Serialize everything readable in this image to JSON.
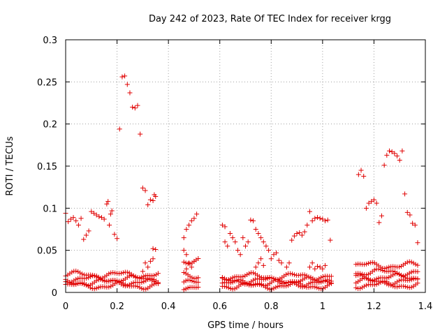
{
  "chart_data": {
    "type": "scatter",
    "title": "Day 242 of 2023, Rate Of TEC Index for receiver krgg",
    "xlabel": "GPS time / hours",
    "ylabel": "ROTI / TECUs",
    "xlim": [
      0,
      1.4
    ],
    "ylim": [
      0,
      0.3
    ],
    "xticks": [
      "0",
      "0.2",
      "0.4",
      "0.6",
      "0.8",
      "1",
      "1.2",
      "1.4"
    ],
    "yticks": [
      "0",
      "0.05",
      "0.1",
      "0.15",
      "0.2",
      "0.25",
      "0.3"
    ],
    "grid": true,
    "marker": "+",
    "color": "#e00000",
    "series": [
      {
        "points": [
          [
            0.0,
            0.094
          ],
          [
            0.01,
            0.084
          ],
          [
            0.02,
            0.087
          ],
          [
            0.03,
            0.089
          ],
          [
            0.04,
            0.085
          ],
          [
            0.05,
            0.08
          ],
          [
            0.06,
            0.088
          ],
          [
            0.07,
            0.063
          ],
          [
            0.08,
            0.068
          ],
          [
            0.09,
            0.073
          ],
          [
            0.1,
            0.096
          ],
          [
            0.11,
            0.094
          ],
          [
            0.12,
            0.092
          ],
          [
            0.13,
            0.09
          ],
          [
            0.14,
            0.089
          ],
          [
            0.15,
            0.087
          ],
          [
            0.16,
            0.105
          ],
          [
            0.165,
            0.108
          ],
          [
            0.17,
            0.08
          ],
          [
            0.175,
            0.093
          ],
          [
            0.18,
            0.097
          ],
          [
            0.19,
            0.069
          ],
          [
            0.2,
            0.064
          ],
          [
            0.21,
            0.194
          ],
          [
            0.22,
            0.256
          ],
          [
            0.23,
            0.257
          ],
          [
            0.24,
            0.247
          ],
          [
            0.25,
            0.237
          ],
          [
            0.26,
            0.22
          ],
          [
            0.27,
            0.219
          ],
          [
            0.28,
            0.222
          ],
          [
            0.29,
            0.188
          ],
          [
            0.3,
            0.124
          ],
          [
            0.31,
            0.121
          ],
          [
            0.32,
            0.104
          ],
          [
            0.33,
            0.11
          ],
          [
            0.34,
            0.109
          ],
          [
            0.345,
            0.116
          ],
          [
            0.35,
            0.114
          ],
          [
            0.34,
            0.052
          ],
          [
            0.35,
            0.051
          ],
          [
            0.3,
            0.025
          ],
          [
            0.31,
            0.035
          ],
          [
            0.32,
            0.03
          ],
          [
            0.33,
            0.037
          ],
          [
            0.34,
            0.04
          ],
          [
            0.46,
            0.065
          ],
          [
            0.47,
            0.075
          ],
          [
            0.48,
            0.08
          ],
          [
            0.49,
            0.085
          ],
          [
            0.5,
            0.088
          ],
          [
            0.51,
            0.093
          ],
          [
            0.46,
            0.05
          ],
          [
            0.47,
            0.045
          ],
          [
            0.48,
            0.035
          ],
          [
            0.49,
            0.03
          ],
          [
            0.5,
            0.037
          ],
          [
            0.47,
            0.028
          ],
          [
            0.61,
            0.08
          ],
          [
            0.62,
            0.078
          ],
          [
            0.62,
            0.06
          ],
          [
            0.63,
            0.055
          ],
          [
            0.64,
            0.07
          ],
          [
            0.65,
            0.065
          ],
          [
            0.66,
            0.06
          ],
          [
            0.67,
            0.05
          ],
          [
            0.68,
            0.045
          ],
          [
            0.69,
            0.065
          ],
          [
            0.7,
            0.055
          ],
          [
            0.71,
            0.06
          ],
          [
            0.72,
            0.086
          ],
          [
            0.73,
            0.085
          ],
          [
            0.74,
            0.075
          ],
          [
            0.75,
            0.07
          ],
          [
            0.76,
            0.065
          ],
          [
            0.77,
            0.06
          ],
          [
            0.78,
            0.055
          ],
          [
            0.79,
            0.05
          ],
          [
            0.74,
            0.03
          ],
          [
            0.75,
            0.035
          ],
          [
            0.76,
            0.04
          ],
          [
            0.77,
            0.032
          ],
          [
            0.8,
            0.04
          ],
          [
            0.81,
            0.045
          ],
          [
            0.82,
            0.047
          ],
          [
            0.83,
            0.038
          ],
          [
            0.84,
            0.035
          ],
          [
            0.86,
            0.03
          ],
          [
            0.87,
            0.035
          ],
          [
            0.88,
            0.062
          ],
          [
            0.89,
            0.067
          ],
          [
            0.9,
            0.07
          ],
          [
            0.91,
            0.071
          ],
          [
            0.92,
            0.068
          ],
          [
            0.93,
            0.072
          ],
          [
            0.94,
            0.08
          ],
          [
            0.95,
            0.096
          ],
          [
            0.96,
            0.085
          ],
          [
            0.97,
            0.088
          ],
          [
            0.98,
            0.089
          ],
          [
            0.99,
            0.088
          ],
          [
            1.0,
            0.087
          ],
          [
            1.01,
            0.085
          ],
          [
            1.02,
            0.086
          ],
          [
            1.03,
            0.062
          ],
          [
            0.95,
            0.03
          ],
          [
            0.96,
            0.035
          ],
          [
            0.97,
            0.028
          ],
          [
            0.98,
            0.031
          ],
          [
            0.99,
            0.03
          ],
          [
            1.0,
            0.028
          ],
          [
            1.01,
            0.032
          ],
          [
            1.14,
            0.14
          ],
          [
            1.15,
            0.145
          ],
          [
            1.16,
            0.138
          ],
          [
            1.17,
            0.1
          ],
          [
            1.18,
            0.106
          ],
          [
            1.19,
            0.108
          ],
          [
            1.2,
            0.11
          ],
          [
            1.21,
            0.106
          ],
          [
            1.22,
            0.083
          ],
          [
            1.23,
            0.091
          ],
          [
            1.24,
            0.151
          ],
          [
            1.25,
            0.163
          ],
          [
            1.26,
            0.168
          ],
          [
            1.27,
            0.167
          ],
          [
            1.28,
            0.165
          ],
          [
            1.29,
            0.162
          ],
          [
            1.3,
            0.157
          ],
          [
            1.31,
            0.168
          ],
          [
            1.32,
            0.117
          ],
          [
            1.33,
            0.095
          ],
          [
            1.34,
            0.092
          ],
          [
            1.35,
            0.082
          ],
          [
            1.36,
            0.08
          ],
          [
            1.37,
            0.059
          ]
        ]
      },
      {
        "bands": [
          {
            "xmin": 0.0,
            "xmax": 0.36,
            "levels": [
              0.008,
              0.012,
              0.016,
              0.021
            ]
          },
          {
            "xmin": 0.46,
            "xmax": 0.52,
            "levels": [
              0.007,
              0.011,
              0.02,
              0.038
            ]
          },
          {
            "xmin": 0.61,
            "xmax": 1.04,
            "levels": [
              0.008,
              0.011,
              0.014,
              0.019
            ]
          },
          {
            "xmin": 1.13,
            "xmax": 1.37,
            "levels": [
              0.009,
              0.013,
              0.018,
              0.024,
              0.032
            ]
          }
        ]
      }
    ]
  }
}
